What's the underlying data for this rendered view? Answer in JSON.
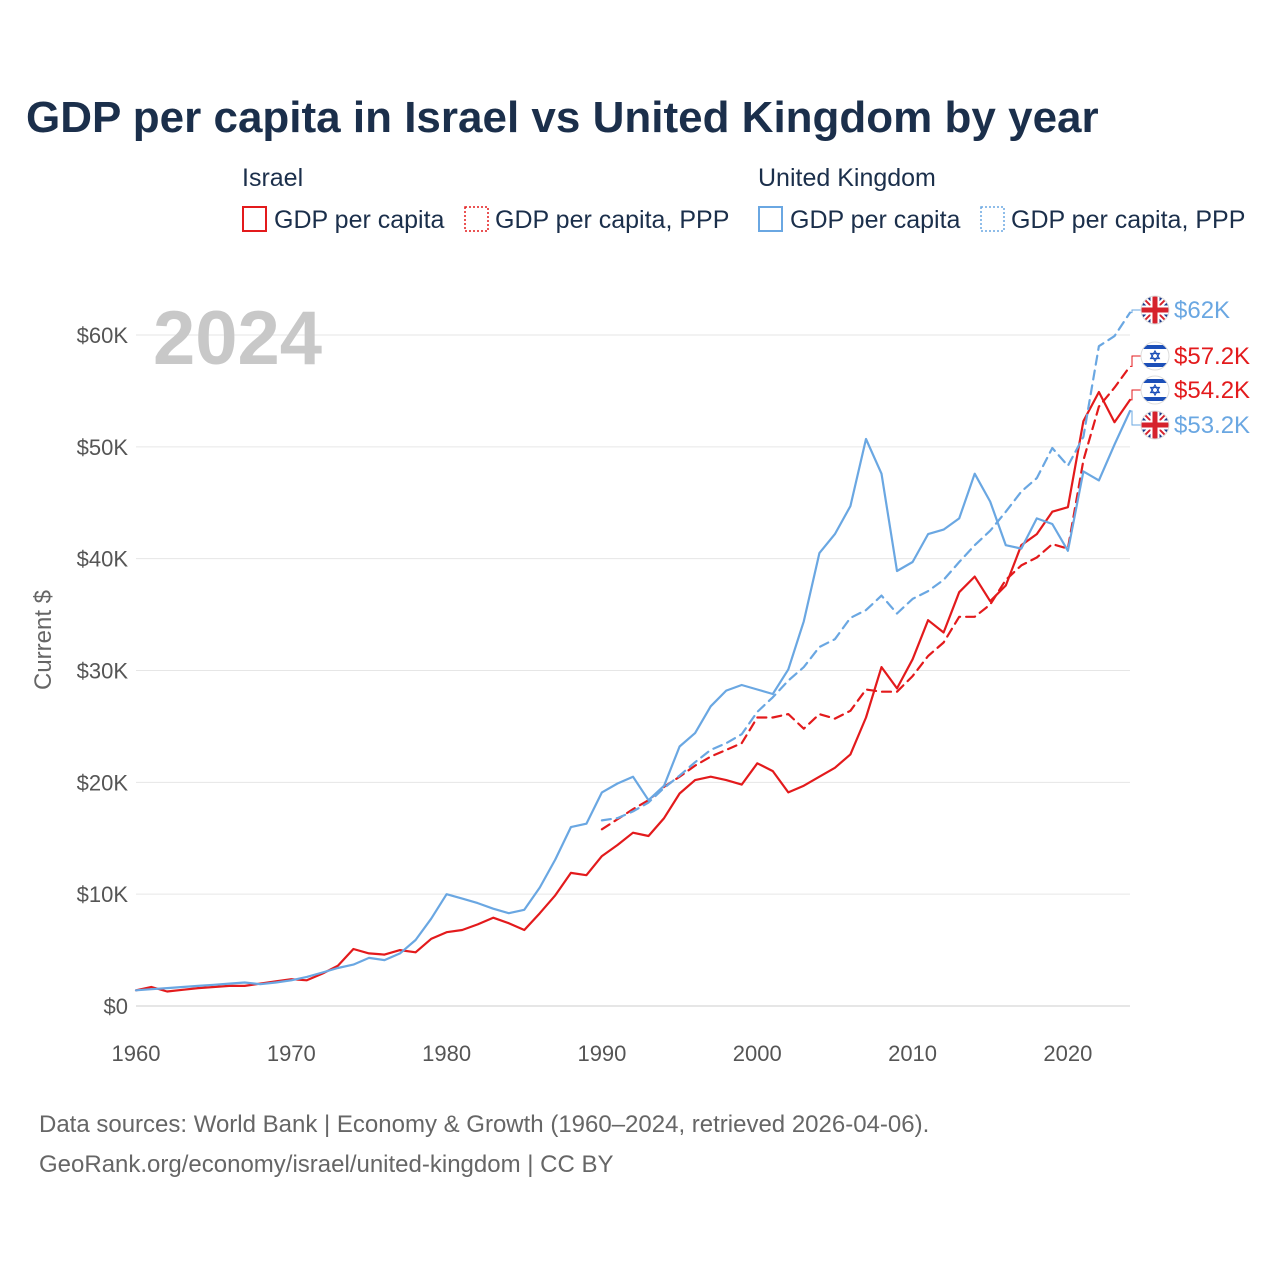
{
  "title": "GDP per capita in Israel vs United Kingdom by year",
  "legend": {
    "groups": [
      {
        "name": "Israel",
        "color": "#e31a1c",
        "items": [
          {
            "label": "GDP per capita",
            "style": "solid"
          },
          {
            "label": "GDP per capita, PPP",
            "style": "dashed"
          }
        ]
      },
      {
        "name": "United Kingdom",
        "color": "#6aa7e2",
        "items": [
          {
            "label": "GDP per capita",
            "style": "solid"
          },
          {
            "label": "GDP per capita, PPP",
            "style": "dashed"
          }
        ]
      }
    ]
  },
  "year_watermark": "2024",
  "source_line1": "Data sources: World Bank | Economy & Growth (1960–2024, retrieved 2026-04-06).",
  "source_line2": "GeoRank.org/economy/israel/united-kingdom | CC BY",
  "chart_data": {
    "type": "line",
    "title": "GDP per capita in Israel vs United Kingdom by year",
    "xlabel": "",
    "ylabel": "Current $",
    "xlim": [
      1960,
      2024
    ],
    "ylim": [
      0,
      65000
    ],
    "xticks": [
      1960,
      1970,
      1980,
      1990,
      2000,
      2010,
      2020
    ],
    "yticks": [
      0,
      10000,
      20000,
      30000,
      40000,
      50000,
      60000
    ],
    "ytick_labels": [
      "$0",
      "$10K",
      "$20K",
      "$30K",
      "$40K",
      "$50K",
      "$60K"
    ],
    "grid": true,
    "series": [
      {
        "name": "Israel GDP per capita",
        "country": "Israel",
        "color": "#e31a1c",
        "style": "solid",
        "end_label": "$54.2K",
        "flag": "israel",
        "x": [
          1960,
          1961,
          1962,
          1963,
          1964,
          1965,
          1966,
          1967,
          1968,
          1969,
          1970,
          1971,
          1972,
          1973,
          1974,
          1975,
          1976,
          1977,
          1978,
          1979,
          1980,
          1981,
          1982,
          1983,
          1984,
          1985,
          1986,
          1987,
          1988,
          1989,
          1990,
          1991,
          1992,
          1993,
          1994,
          1995,
          1996,
          1997,
          1998,
          1999,
          2000,
          2001,
          2002,
          2003,
          2004,
          2005,
          2006,
          2007,
          2008,
          2009,
          2010,
          2011,
          2012,
          2013,
          2014,
          2015,
          2016,
          2017,
          2018,
          2019,
          2020,
          2021,
          2022,
          2023,
          2024
        ],
        "y": [
          1400,
          1700,
          1300,
          1450,
          1600,
          1700,
          1800,
          1800,
          2000,
          2200,
          2400,
          2300,
          2900,
          3600,
          5100,
          4700,
          4600,
          5000,
          4800,
          6000,
          6600,
          6800,
          7300,
          7900,
          7400,
          6800,
          8300,
          9900,
          11900,
          11700,
          13400,
          14400,
          15500,
          15200,
          16800,
          19000,
          20200,
          20500,
          20200,
          19800,
          21700,
          21000,
          19100,
          19700,
          20500,
          21300,
          22500,
          25800,
          30300,
          28400,
          31000,
          34500,
          33400,
          37000,
          38400,
          36200,
          37600,
          41200,
          42200,
          44200,
          44600,
          52300,
          54900,
          52200,
          54200
        ]
      },
      {
        "name": "Israel GDP per capita, PPP",
        "country": "Israel",
        "color": "#e31a1c",
        "style": "dashed",
        "end_label": "$57.2K",
        "flag": "israel",
        "x": [
          1990,
          1991,
          1992,
          1993,
          1994,
          1995,
          1996,
          1997,
          1998,
          1999,
          2000,
          2001,
          2002,
          2003,
          2004,
          2005,
          2006,
          2007,
          2008,
          2009,
          2010,
          2011,
          2012,
          2013,
          2014,
          2015,
          2016,
          2017,
          2018,
          2019,
          2020,
          2021,
          2022,
          2023,
          2024
        ],
        "y": [
          15800,
          16700,
          17600,
          18400,
          19600,
          20500,
          21500,
          22300,
          22900,
          23500,
          25800,
          25800,
          26100,
          24800,
          26100,
          25700,
          26400,
          28300,
          28100,
          28100,
          29500,
          31300,
          32500,
          34800,
          34800,
          35900,
          38100,
          39400,
          40100,
          41300,
          40900,
          48800,
          53600,
          55300,
          57200
        ]
      },
      {
        "name": "United Kingdom GDP per capita",
        "country": "United Kingdom",
        "color": "#6aa7e2",
        "style": "solid",
        "end_label": "$53.2K",
        "flag": "uk",
        "x": [
          1960,
          1961,
          1962,
          1963,
          1964,
          1965,
          1966,
          1967,
          1968,
          1969,
          1970,
          1971,
          1972,
          1973,
          1974,
          1975,
          1976,
          1977,
          1978,
          1979,
          1980,
          1981,
          1982,
          1983,
          1984,
          1985,
          1986,
          1987,
          1988,
          1989,
          1990,
          1991,
          1992,
          1993,
          1994,
          1995,
          1996,
          1997,
          1998,
          1999,
          2000,
          2001,
          2002,
          2003,
          2004,
          2005,
          2006,
          2007,
          2008,
          2009,
          2010,
          2011,
          2012,
          2013,
          2014,
          2015,
          2016,
          2017,
          2018,
          2019,
          2020,
          2021,
          2022,
          2023,
          2024
        ],
        "y": [
          1400,
          1500,
          1600,
          1700,
          1800,
          1900,
          2000,
          2100,
          1950,
          2100,
          2300,
          2600,
          3000,
          3400,
          3700,
          4300,
          4100,
          4700,
          5900,
          7800,
          10000,
          9600,
          9200,
          8700,
          8300,
          8600,
          10600,
          13100,
          16000,
          16300,
          19100,
          19900,
          20500,
          18400,
          19700,
          23200,
          24400,
          26800,
          28200,
          28700,
          28300,
          27900,
          30100,
          34400,
          40500,
          42200,
          44700,
          50700,
          47600,
          38900,
          39700,
          42200,
          42600,
          43600,
          47600,
          45100,
          41200,
          40900,
          43600,
          43100,
          40700,
          47800,
          47000,
          50200,
          53200
        ]
      },
      {
        "name": "United Kingdom GDP per capita, PPP",
        "country": "United Kingdom",
        "color": "#6aa7e2",
        "style": "dashed",
        "end_label": "$62K",
        "flag": "uk",
        "x": [
          1990,
          1991,
          1992,
          1993,
          1994,
          1995,
          1996,
          1997,
          1998,
          1999,
          2000,
          2001,
          2002,
          2003,
          2004,
          2005,
          2006,
          2007,
          2008,
          2009,
          2010,
          2011,
          2012,
          2013,
          2014,
          2015,
          2016,
          2017,
          2018,
          2019,
          2020,
          2021,
          2022,
          2023,
          2024
        ],
        "y": [
          16600,
          16800,
          17400,
          18200,
          19500,
          20600,
          21800,
          22900,
          23500,
          24300,
          26300,
          27600,
          29100,
          30300,
          32100,
          32800,
          34700,
          35400,
          36700,
          35100,
          36400,
          37100,
          38100,
          39700,
          41200,
          42500,
          44200,
          46000,
          47200,
          49900,
          48300,
          50900,
          59000,
          59900,
          62000
        ]
      }
    ]
  }
}
